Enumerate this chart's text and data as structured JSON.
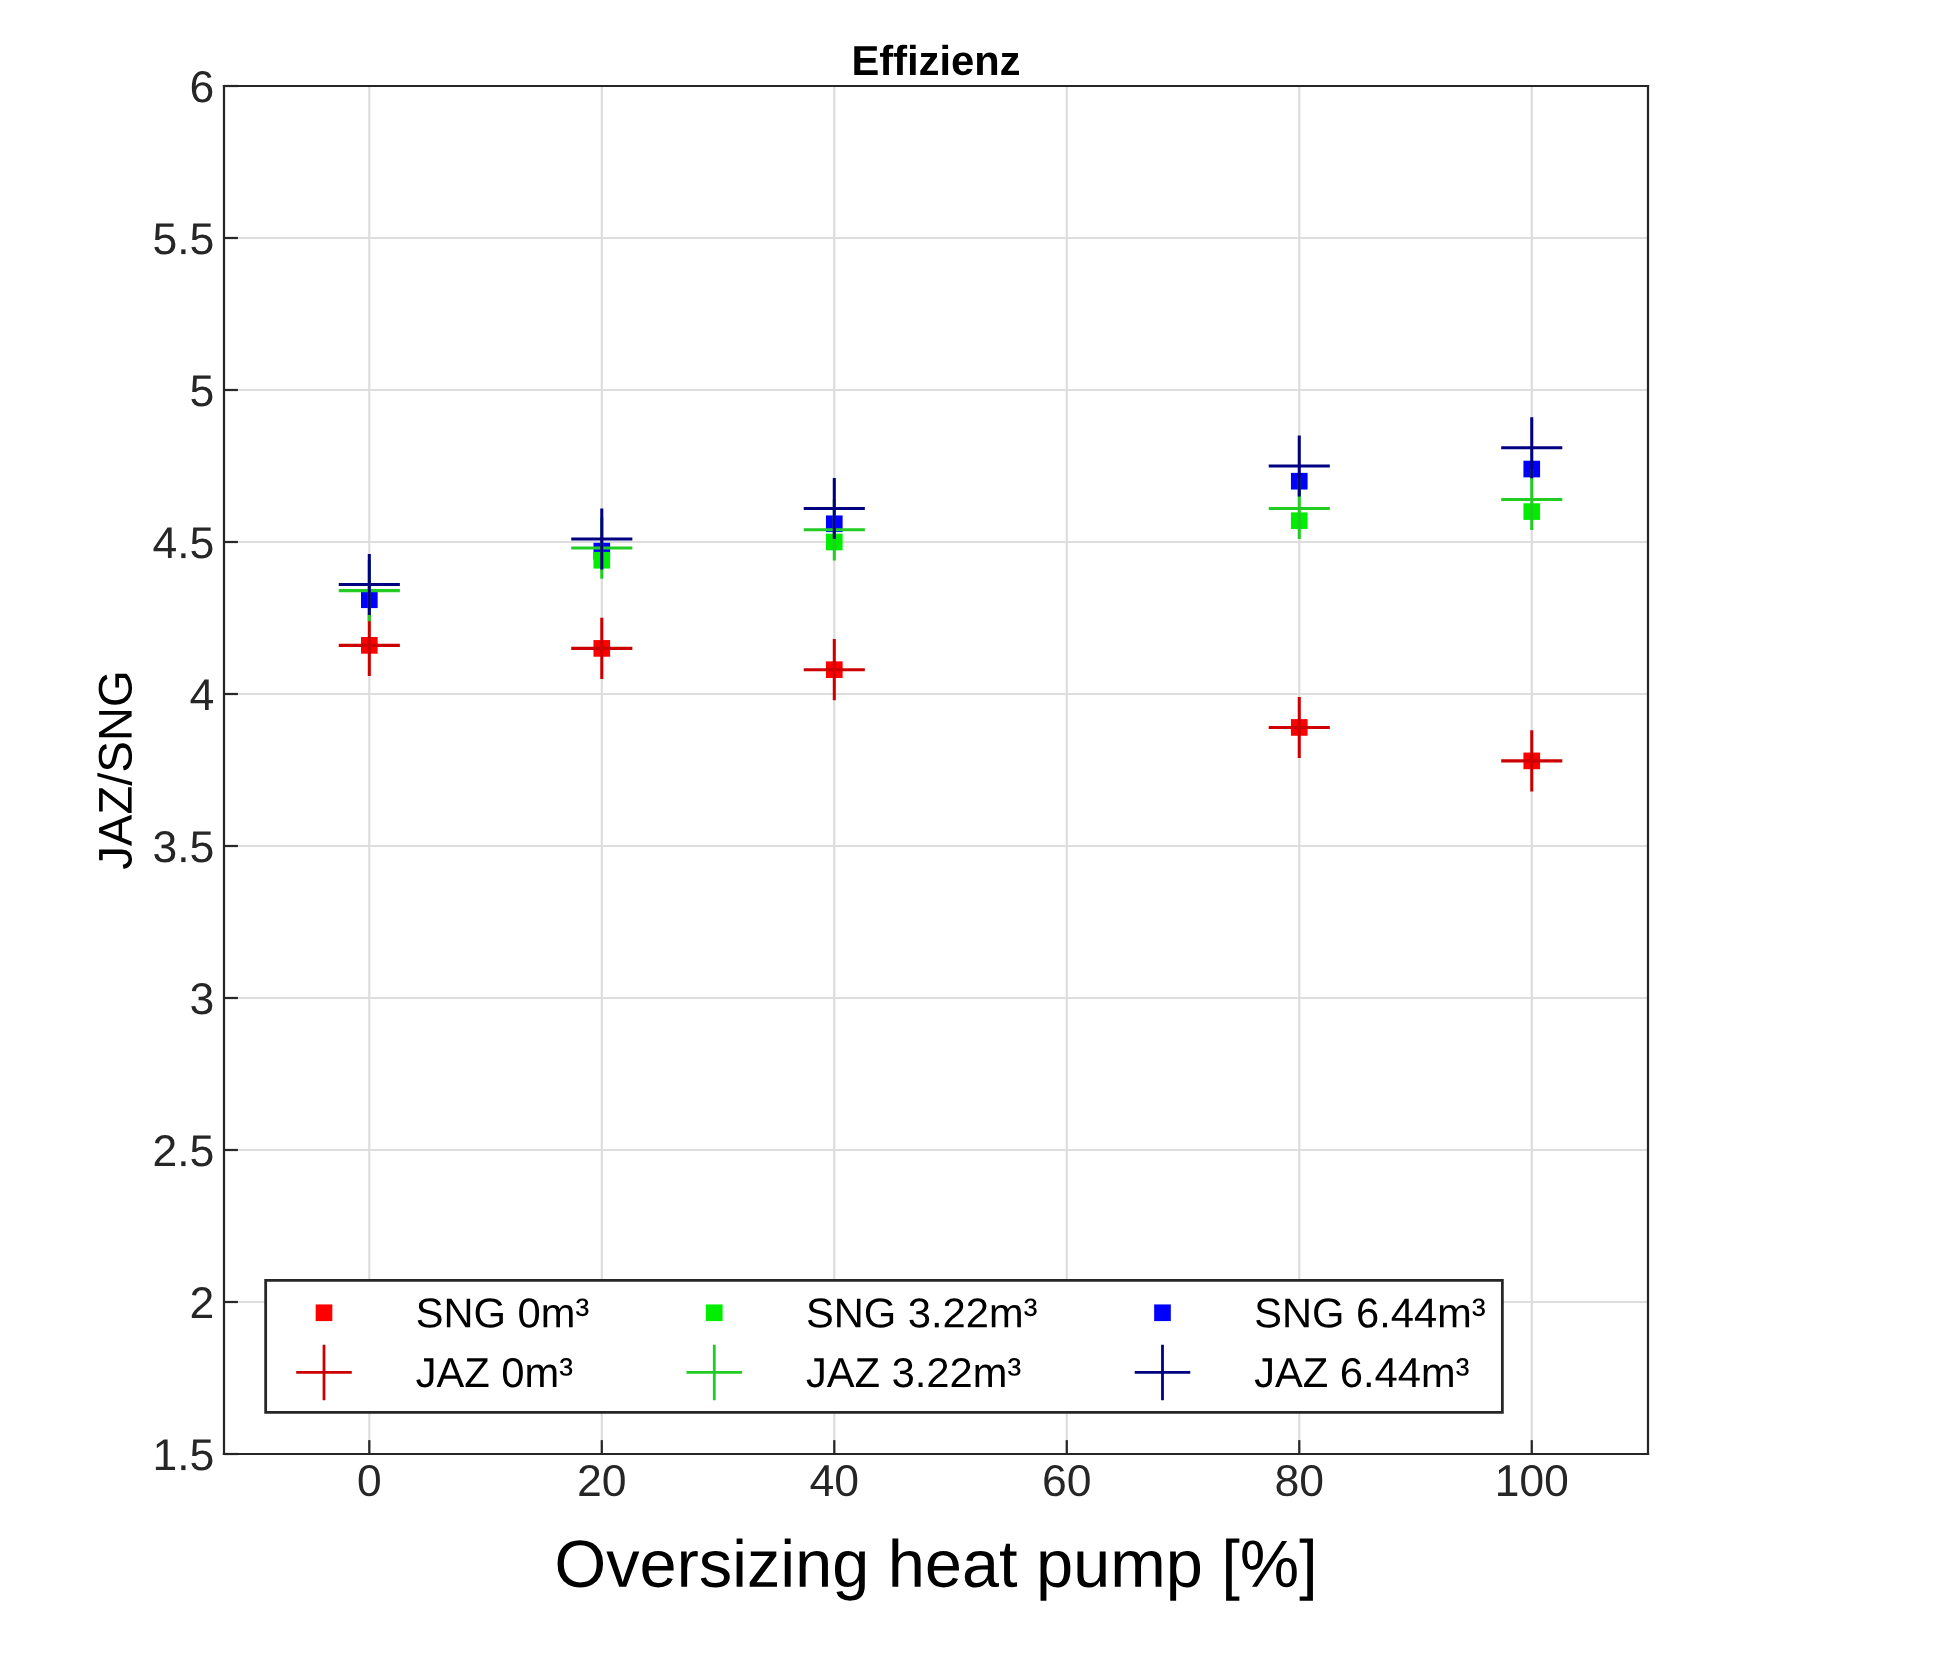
{
  "chart_data": {
    "type": "scatter",
    "title": "Effizienz",
    "xlabel": "Oversizing heat pump [%]",
    "ylabel": "JAZ/SNG",
    "x": [
      0,
      20,
      40,
      80,
      100
    ],
    "series": [
      {
        "name": "SNG 0m³",
        "color": "#ff0000",
        "marker": "square",
        "values": [
          4.16,
          4.15,
          4.08,
          3.89,
          3.78
        ]
      },
      {
        "name": "JAZ 0m³",
        "color": "#cc0000",
        "marker": "cross",
        "values": [
          4.16,
          4.15,
          4.08,
          3.89,
          3.78
        ]
      },
      {
        "name": "SNG 3.22m³",
        "color": "#00ee00",
        "marker": "square",
        "values": [
          null,
          4.44,
          4.5,
          4.57,
          4.6
        ]
      },
      {
        "name": "JAZ 3.22m³",
        "color": "#22cc22",
        "marker": "cross",
        "values": [
          4.34,
          4.48,
          4.54,
          4.61,
          4.64
        ]
      },
      {
        "name": "SNG 6.44m³",
        "color": "#0000ff",
        "marker": "square",
        "values": [
          4.31,
          4.47,
          4.56,
          4.7,
          4.74
        ]
      },
      {
        "name": "JAZ 6.44m³",
        "color": "#000080",
        "marker": "cross",
        "values": [
          4.36,
          4.51,
          4.61,
          4.75,
          4.81
        ]
      }
    ],
    "xlim": [
      -12.5,
      110
    ],
    "xticks": [
      0,
      20,
      40,
      60,
      80,
      100
    ],
    "ylim": [
      1.5,
      6
    ],
    "yticks": [
      1.5,
      2,
      2.5,
      3,
      3.5,
      4,
      4.5,
      5,
      5.5,
      6
    ],
    "grid": true,
    "legend": "bottom left"
  }
}
